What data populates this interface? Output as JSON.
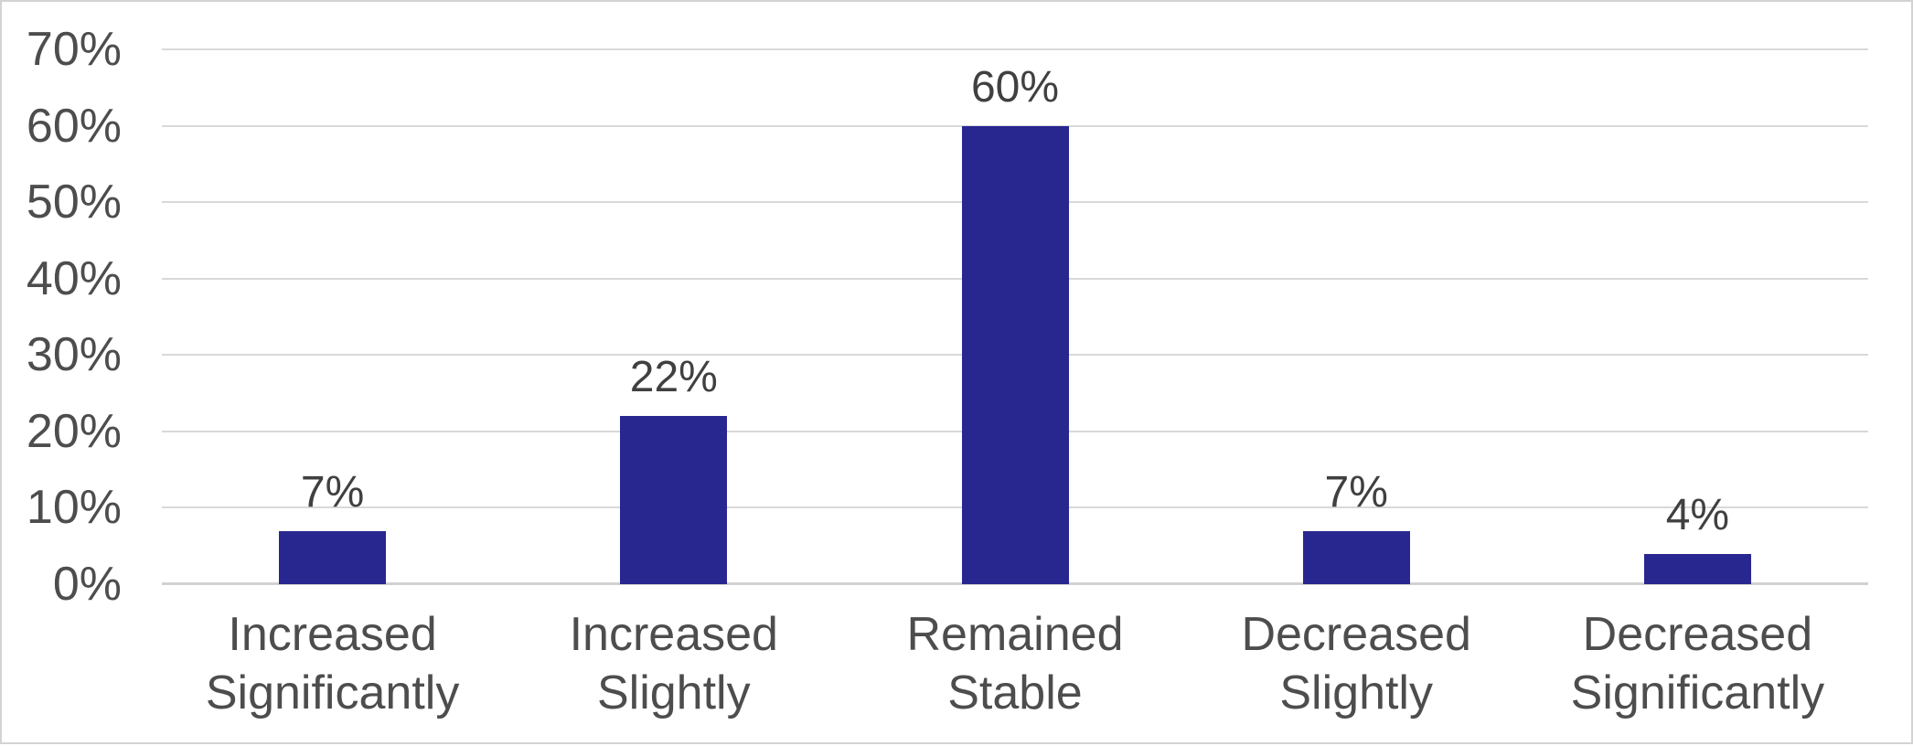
{
  "chart_data": {
    "type": "bar",
    "categories": [
      "Increased Significantly",
      "Increased Slightly",
      "Remained Stable",
      "Decreased Slightly",
      "Decreased Significantly"
    ],
    "values": [
      7,
      22,
      60,
      7,
      4
    ],
    "data_labels": [
      "7%",
      "22%",
      "60%",
      "7%",
      "4%"
    ],
    "y_axis": {
      "ticks": [
        "70%",
        "60%",
        "50%",
        "40%",
        "30%",
        "20%",
        "10%",
        "0%"
      ],
      "min": 0,
      "max": 70
    },
    "grid": true,
    "legend": "none",
    "colors": {
      "bar": "#282790",
      "gridline": "#D9D9D9",
      "axis_line": "#D2D2D2",
      "tick_text": "#4D4D4D",
      "category_text": "#4D4D4D",
      "data_label_text": "#404040",
      "frame_border": "#D3D3D3",
      "background": "#FFFFFF"
    }
  }
}
